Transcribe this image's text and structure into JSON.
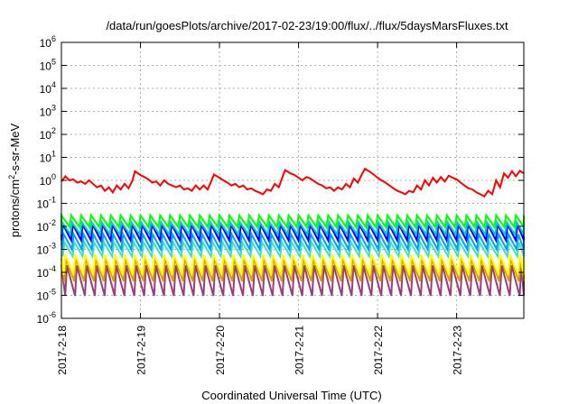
{
  "chart_data": {
    "type": "line",
    "title": "/data/run/goesPlots/archive/2017-02-23/19:00/flux/../flux/5daysMarsFluxes.txt",
    "xlabel": "Coordinated Universal Time (UTC)",
    "ylabel": "protons/cm2-s-sr-MeV",
    "ylabel_parts": {
      "pre": "protons/cm",
      "sup": "2",
      "post": "-s-sr-MeV"
    },
    "y_scale": "log",
    "ylim_exp": [
      -6,
      6
    ],
    "y_ticks": [
      {
        "base": "10",
        "exp": "-6",
        "value": -6
      },
      {
        "base": "10",
        "exp": "-5",
        "value": -5
      },
      {
        "base": "10",
        "exp": "-4",
        "value": -4
      },
      {
        "base": "10",
        "exp": "-3",
        "value": -3
      },
      {
        "base": "10",
        "exp": "-2",
        "value": -2
      },
      {
        "base": "10",
        "exp": "-1",
        "value": -1
      },
      {
        "base": "10",
        "exp": "0",
        "value": 0
      },
      {
        "base": "10",
        "exp": "1",
        "value": 1
      },
      {
        "base": "10",
        "exp": "2",
        "value": 2
      },
      {
        "base": "10",
        "exp": "3",
        "value": 3
      },
      {
        "base": "10",
        "exp": "4",
        "value": 4
      },
      {
        "base": "10",
        "exp": "5",
        "value": 5
      },
      {
        "base": "10",
        "exp": "6",
        "value": 6
      }
    ],
    "xlim_days": [
      0,
      5.85
    ],
    "x_ticks": [
      {
        "label": "2017-2-18",
        "day": 0
      },
      {
        "label": "2017-2-19",
        "day": 1
      },
      {
        "label": "2017-2-20",
        "day": 2
      },
      {
        "label": "2017-2-21",
        "day": 3
      },
      {
        "label": "2017-2-22",
        "day": 4
      },
      {
        "label": "2017-2-23",
        "day": 5
      }
    ],
    "grid": true,
    "series": [
      {
        "color": "#ff0000",
        "style": "trend",
        "points": [
          [
            0.0,
            0.9
          ],
          [
            0.05,
            1.5
          ],
          [
            0.1,
            1.0
          ],
          [
            0.15,
            1.1
          ],
          [
            0.2,
            0.8
          ],
          [
            0.25,
            0.9
          ],
          [
            0.3,
            0.7
          ],
          [
            0.35,
            1.0
          ],
          [
            0.4,
            0.7
          ],
          [
            0.45,
            0.5
          ],
          [
            0.5,
            0.6
          ],
          [
            0.55,
            0.35
          ],
          [
            0.6,
            0.5
          ],
          [
            0.65,
            0.3
          ],
          [
            0.7,
            0.6
          ],
          [
            0.75,
            0.4
          ],
          [
            0.8,
            0.7
          ],
          [
            0.85,
            0.45
          ],
          [
            0.9,
            1.0
          ],
          [
            0.93,
            2.5
          ],
          [
            1.0,
            1.7
          ],
          [
            1.05,
            1.4
          ],
          [
            1.1,
            1.1
          ],
          [
            1.15,
            0.8
          ],
          [
            1.2,
            0.9
          ],
          [
            1.25,
            0.6
          ],
          [
            1.3,
            1.0
          ],
          [
            1.35,
            0.7
          ],
          [
            1.4,
            0.6
          ],
          [
            1.45,
            0.5
          ],
          [
            1.5,
            0.6
          ],
          [
            1.55,
            0.4
          ],
          [
            1.6,
            0.45
          ],
          [
            1.65,
            0.35
          ],
          [
            1.7,
            0.6
          ],
          [
            1.75,
            0.4
          ],
          [
            1.8,
            0.6
          ],
          [
            1.85,
            0.4
          ],
          [
            1.9,
            1.0
          ],
          [
            1.93,
            1.8
          ],
          [
            2.0,
            1.3
          ],
          [
            2.05,
            1.0
          ],
          [
            2.1,
            0.8
          ],
          [
            2.15,
            0.6
          ],
          [
            2.2,
            0.7
          ],
          [
            2.25,
            0.5
          ],
          [
            2.3,
            0.6
          ],
          [
            2.35,
            0.4
          ],
          [
            2.4,
            0.45
          ],
          [
            2.45,
            0.35
          ],
          [
            2.5,
            0.3
          ],
          [
            2.55,
            0.25
          ],
          [
            2.6,
            0.4
          ],
          [
            2.65,
            0.35
          ],
          [
            2.7,
            0.7
          ],
          [
            2.75,
            0.5
          ],
          [
            2.8,
            1.5
          ],
          [
            2.83,
            2.8
          ],
          [
            2.9,
            2.0
          ],
          [
            2.95,
            1.7
          ],
          [
            3.0,
            1.3
          ],
          [
            3.05,
            1.0
          ],
          [
            3.1,
            1.4
          ],
          [
            3.15,
            1.2
          ],
          [
            3.2,
            0.9
          ],
          [
            3.25,
            0.7
          ],
          [
            3.3,
            0.6
          ],
          [
            3.35,
            0.45
          ],
          [
            3.4,
            0.5
          ],
          [
            3.45,
            0.35
          ],
          [
            3.5,
            0.5
          ],
          [
            3.55,
            0.4
          ],
          [
            3.6,
            0.7
          ],
          [
            3.65,
            0.5
          ],
          [
            3.7,
            1.2
          ],
          [
            3.75,
            0.8
          ],
          [
            3.8,
            1.8
          ],
          [
            3.84,
            3.2
          ],
          [
            3.9,
            2.4
          ],
          [
            3.95,
            1.8
          ],
          [
            4.0,
            1.3
          ],
          [
            4.05,
            1.0
          ],
          [
            4.1,
            0.8
          ],
          [
            4.15,
            0.6
          ],
          [
            4.2,
            0.45
          ],
          [
            4.25,
            0.35
          ],
          [
            4.3,
            0.3
          ],
          [
            4.35,
            0.25
          ],
          [
            4.4,
            0.35
          ],
          [
            4.45,
            0.3
          ],
          [
            4.5,
            0.6
          ],
          [
            4.55,
            0.4
          ],
          [
            4.6,
            1.0
          ],
          [
            4.65,
            0.6
          ],
          [
            4.7,
            1.3
          ],
          [
            4.75,
            0.8
          ],
          [
            4.8,
            1.4
          ],
          [
            4.85,
            0.9
          ],
          [
            4.9,
            1.6
          ],
          [
            4.95,
            1.3
          ],
          [
            5.0,
            1.1
          ],
          [
            5.05,
            0.8
          ],
          [
            5.1,
            0.6
          ],
          [
            5.15,
            0.45
          ],
          [
            5.2,
            0.4
          ],
          [
            5.25,
            0.3
          ],
          [
            5.3,
            0.25
          ],
          [
            5.35,
            0.2
          ],
          [
            5.4,
            0.35
          ],
          [
            5.45,
            0.25
          ],
          [
            5.5,
            1.0
          ],
          [
            5.55,
            0.5
          ],
          [
            5.6,
            2.0
          ],
          [
            5.65,
            1.3
          ],
          [
            5.7,
            2.5
          ],
          [
            5.75,
            1.5
          ],
          [
            5.8,
            2.6
          ],
          [
            5.85,
            2.0
          ]
        ]
      },
      {
        "color": "#00ff00",
        "style": "sawtooth",
        "period": 0.125,
        "phase": 0.0,
        "high": 0.03,
        "low": 0.0095
      },
      {
        "color": "#00cccc",
        "style": "sawtooth",
        "period": 0.125,
        "phase": 0.01,
        "high": 0.015,
        "low": 0.0045
      },
      {
        "color": "#0000ff",
        "style": "sawtooth",
        "period": 0.125,
        "phase": 0.02,
        "high": 0.012,
        "low": 0.0025
      },
      {
        "color": "#00a0ff",
        "style": "sawtooth",
        "period": 0.125,
        "phase": 0.03,
        "high": 0.0045,
        "low": 0.001
      },
      {
        "color": "#40e0c0",
        "style": "sawtooth",
        "period": 0.125,
        "phase": 0.04,
        "high": 0.002,
        "low": 0.0005
      },
      {
        "color": "#ffff00",
        "style": "sawtooth",
        "period": 0.125,
        "phase": 0.05,
        "high": 0.0006,
        "low": 8e-05
      },
      {
        "color": "#d4a000",
        "style": "sawtooth",
        "period": 0.125,
        "phase": 0.06,
        "high": 0.0004,
        "low": 4e-05
      },
      {
        "color": "#9b3d7a",
        "style": "sawtooth",
        "period": 0.125,
        "phase": 0.07,
        "high": 0.0002,
        "low": 9.5e-06
      }
    ]
  }
}
